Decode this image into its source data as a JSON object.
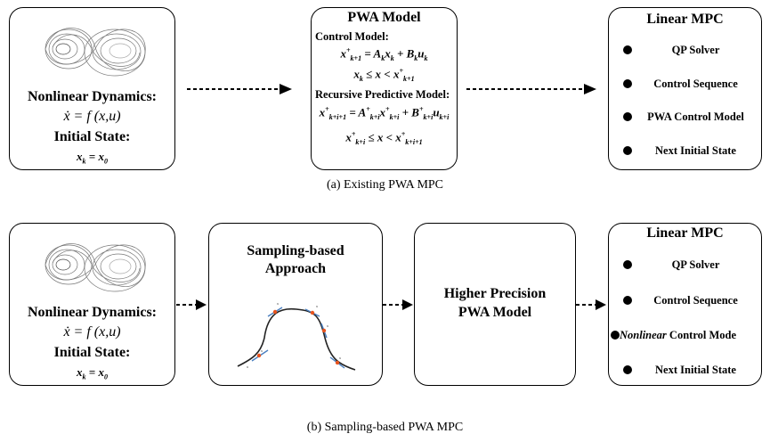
{
  "row_a": {
    "dynamics": {
      "title": "Nonlinear Dynamics:",
      "equation": "ẋ = f (x,u)",
      "initial_label": "Initial State:"
    },
    "pwa": {
      "title": "PWA Model",
      "control_model_label": "Control Model:",
      "recursive_label": "Recursive Predictive Model:"
    },
    "mpc": {
      "title": "Linear MPC",
      "items": [
        "QP Solver",
        "Control Sequence",
        "PWA Control Model",
        "Next Initial State"
      ]
    },
    "caption": "(a) Existing PWA MPC"
  },
  "row_b": {
    "dynamics": {
      "title": "Nonlinear Dynamics:",
      "equation": "ẋ = f (x,u)",
      "initial_label": "Initial State:"
    },
    "sampling": {
      "title_line1": "Sampling-based",
      "title_line2": "Approach"
    },
    "higher": {
      "line1": "Higher Precision",
      "line2": "PWA Model"
    },
    "mpc": {
      "title": "Linear MPC",
      "items": [
        "QP Solver",
        "Control Sequence",
        "Nonlinear",
        " Control Mode",
        "Next Initial State"
      ]
    },
    "caption": "(b) Sampling-based PWA MPC"
  }
}
